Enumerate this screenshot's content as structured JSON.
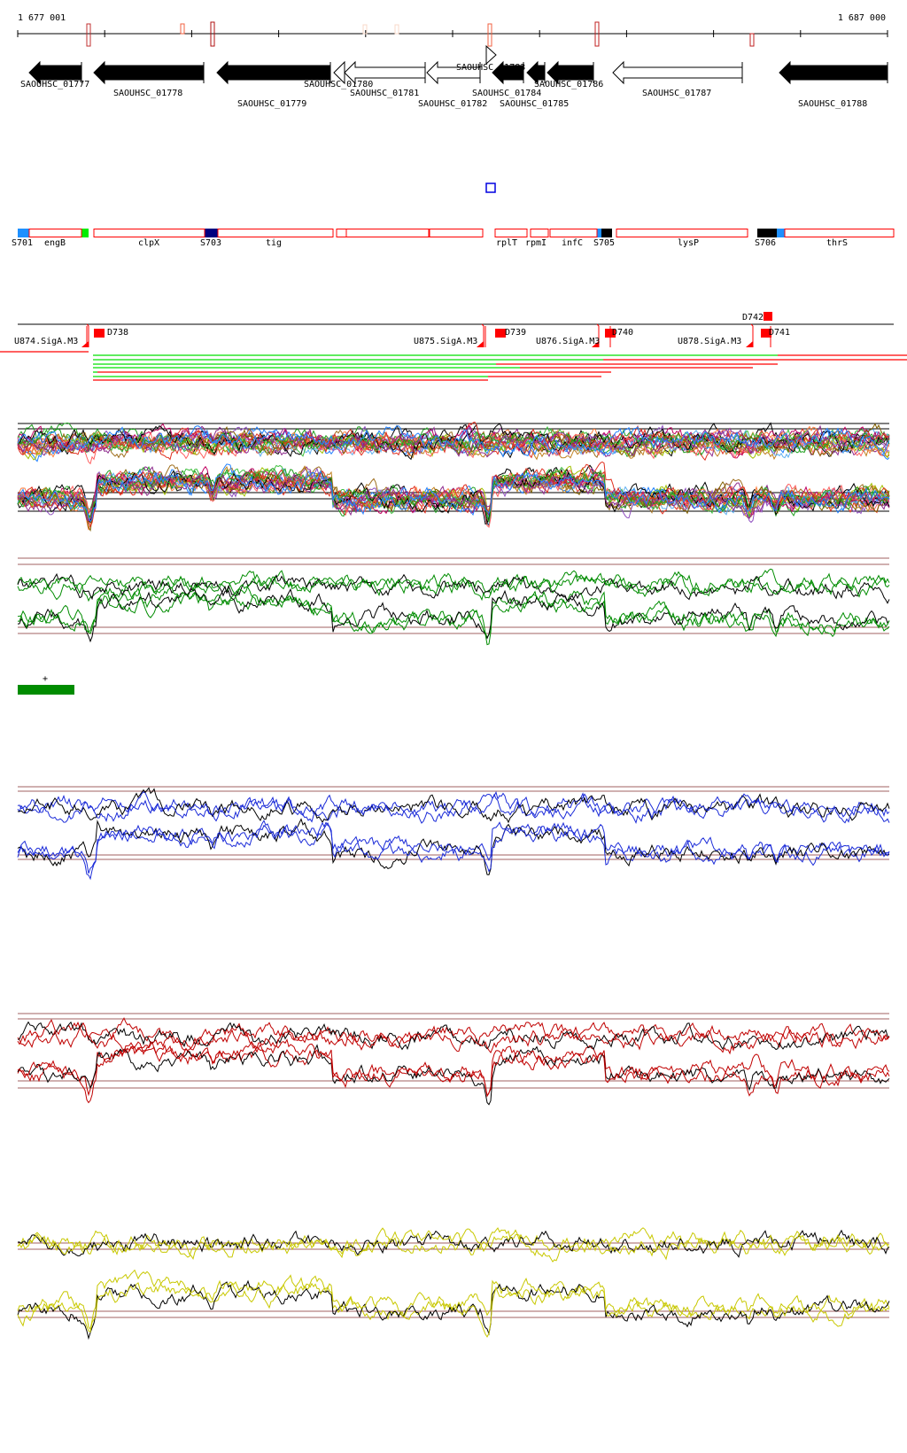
{
  "ruler": {
    "start_label": "1 677 001",
    "end_label": "1 687 000"
  },
  "genes": [
    {
      "label": "SAOUHSC_01777",
      "strand": "-",
      "filled": true
    },
    {
      "label": "SAOUHSC_01778",
      "strand": "-",
      "filled": true
    },
    {
      "label": "SAOUHSC_01779",
      "strand": "-",
      "filled": true
    },
    {
      "label": "SAOUHSC_01780",
      "strand": "-",
      "filled": false
    },
    {
      "label": "SAOUHSC_01781",
      "strand": "-",
      "filled": false
    },
    {
      "label": "SAOUHSC_01782",
      "strand": "-",
      "filled": false
    },
    {
      "label": "SAOUHSC_01783",
      "strand": "+",
      "filled": false
    },
    {
      "label": "SAOUHSC_01784",
      "strand": "-",
      "filled": true
    },
    {
      "label": "SAOUHSC_01785",
      "strand": "-",
      "filled": true
    },
    {
      "label": "SAOUHSC_01786",
      "strand": "-",
      "filled": true
    },
    {
      "label": "SAOUHSC_01787",
      "strand": "-",
      "filled": false
    },
    {
      "label": "SAOUHSC_01788",
      "strand": "-",
      "filled": true
    }
  ],
  "features": {
    "labels": [
      "S701",
      "engB",
      "clpX",
      "S703",
      "tig",
      "rplT",
      "rpmI",
      "infC",
      "S705",
      "lysP",
      "S706",
      "thrS"
    ]
  },
  "terminators": {
    "labels": [
      "U874.SigA.M3",
      "D738",
      "U875.SigA.M3",
      "D739",
      "U876.SigA.M3",
      "D740",
      "U878.SigA.M3",
      "D741",
      "D742"
    ]
  },
  "strand_marker": "+",
  "colors": {
    "feature_outline": "#ff0000",
    "green_track": "#008c00",
    "blue_track": "#1a2ad8",
    "red_track": "#c00000",
    "yellow_track": "#c8c800",
    "threshold_line": "#a06060"
  }
}
